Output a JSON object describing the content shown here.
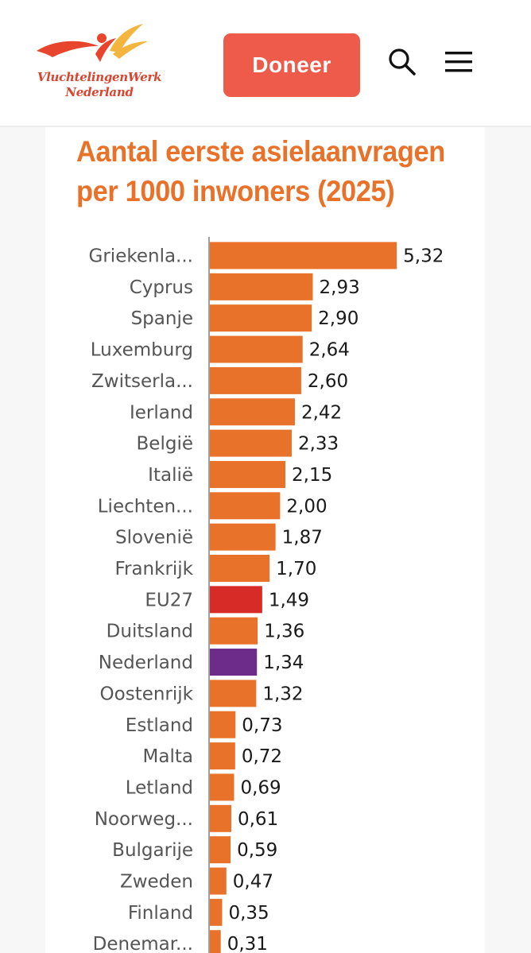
{
  "header": {
    "logo": {
      "line1": "VluchtelingenWerk",
      "line2": "Nederland",
      "colors": {
        "red": "#e8452e",
        "yellow": "#f4b53f"
      }
    },
    "donate_label": "Doneer",
    "donate_color": "#ef5b4a",
    "icons": {
      "search": "search-icon",
      "menu": "hamburger-menu-icon"
    }
  },
  "chart_data": {
    "type": "bar",
    "orientation": "horizontal",
    "title_lines": [
      "Aantal eerste asielaanvragen",
      "per 1000 inwoners (2025)"
    ],
    "title_color": "#e8722a",
    "categories": [
      "Griekenla...",
      "Cyprus",
      "Spanje",
      "Luxemburg",
      "Zwitserla...",
      "Ierland",
      "België",
      "Italië",
      "Liechten...",
      "Slovenië",
      "Frankrijk",
      "EU27",
      "Duitsland",
      "Nederland",
      "Oostenrijk",
      "Estland",
      "Malta",
      "Letland",
      "Noorweg...",
      "Bulgarije",
      "Zweden",
      "Finland",
      "Denemar..."
    ],
    "values": [
      5.32,
      2.93,
      2.9,
      2.64,
      2.6,
      2.42,
      2.33,
      2.15,
      2.0,
      1.87,
      1.7,
      1.49,
      1.36,
      1.34,
      1.32,
      0.73,
      0.72,
      0.69,
      0.61,
      0.59,
      0.47,
      0.35,
      0.31
    ],
    "value_labels": [
      "5,32",
      "2,93",
      "2,90",
      "2,64",
      "2,60",
      "2,42",
      "2,33",
      "2,15",
      "2,00",
      "1,87",
      "1,70",
      "1,49",
      "1,36",
      "1,34",
      "1,32",
      "0,73",
      "0,72",
      "0,69",
      "0,61",
      "0,59",
      "0,47",
      "0,35",
      "0,31"
    ],
    "bar_colors": {
      "default": "#e8722a",
      "EU27": "#d62b26",
      "Nederland": "#6d2b8a"
    },
    "xlim": [
      0,
      5.5
    ],
    "grid": false,
    "legend": "none"
  }
}
